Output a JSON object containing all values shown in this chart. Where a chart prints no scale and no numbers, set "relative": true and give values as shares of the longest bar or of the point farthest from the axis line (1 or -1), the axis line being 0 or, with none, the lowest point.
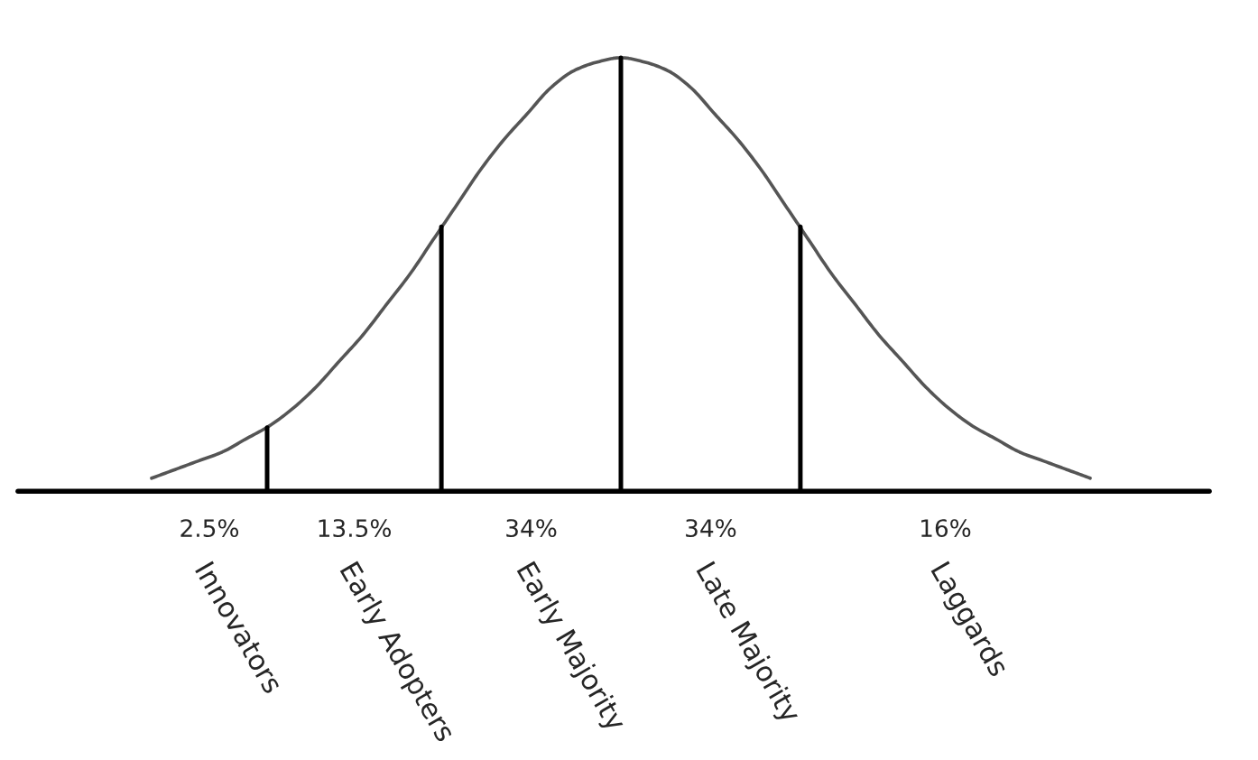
{
  "chart_data": [
    {
      "type": "line",
      "relative": true,
      "color": "#555555",
      "categories": [
        null,
        null,
        null,
        null,
        null,
        null,
        null,
        null,
        null,
        null,
        null,
        null,
        null,
        null,
        null,
        null,
        null,
        null,
        null,
        null,
        null,
        null,
        null,
        null,
        null,
        null,
        null,
        null,
        null,
        null,
        null,
        null,
        null,
        null,
        null,
        null,
        null,
        null,
        null,
        null,
        null
      ],
      "values": [
        0.03,
        0.05,
        0.07,
        0.09,
        0.12,
        0.15,
        0.19,
        0.24,
        0.3,
        0.36,
        0.43,
        0.5,
        0.58,
        0.66,
        0.74,
        0.81,
        0.87,
        0.93,
        0.97,
        0.99,
        1,
        0.99,
        0.97,
        0.93,
        0.87,
        0.81,
        0.74,
        0.66,
        0.58,
        0.5,
        0.43,
        0.36,
        0.3,
        0.24,
        0.19,
        0.15,
        0.12,
        0.09,
        0.07,
        0.05,
        0.03
      ]
    },
    {
      "type": "other",
      "categories": [
        "Innovators",
        "Early Adopters",
        "Early Majority",
        "Late Majority",
        "Laggards"
      ],
      "values": [
        2.5,
        13.5,
        34,
        34,
        16
      ],
      "value_labels": [
        "2.5%",
        "13.5%",
        "34%",
        "34%",
        "16%"
      ]
    }
  ]
}
